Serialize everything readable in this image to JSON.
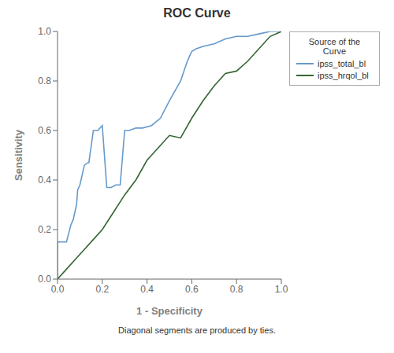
{
  "chart_data": {
    "type": "line",
    "title": "ROC Curve",
    "x_label": "1 - Specificity",
    "y_label": "Sensitivity",
    "footnote": "Diagonal segments are produced by ties.",
    "legend_title": "Source of the\n    Curve",
    "legend": "right",
    "grid": false,
    "xlim": [
      0.0,
      1.0
    ],
    "ylim": [
      0.0,
      1.0
    ],
    "xticks": [
      {
        "value": 0.0,
        "label": "0.0"
      },
      0.2,
      0.4,
      0.6,
      0.8,
      {
        "value": 1.0,
        "label": "1.0"
      }
    ],
    "yticks": [
      {
        "value": 0.0,
        "label": "0.0"
      },
      0.2,
      0.4,
      0.6,
      0.8,
      {
        "value": 1.0,
        "label": "1.0"
      }
    ],
    "series": [
      {
        "name": "ipss_total_bl",
        "color": "#6699CC",
        "x": [
          0.0,
          0.0,
          0.04,
          0.06,
          0.07,
          0.08,
          0.085,
          0.09,
          0.1,
          0.12,
          0.135,
          0.14,
          0.16,
          0.18,
          0.2,
          0.22,
          0.24,
          0.26,
          0.28,
          0.3,
          0.32,
          0.35,
          0.38,
          0.42,
          0.46,
          0.5,
          0.55,
          0.58,
          0.6,
          0.62,
          0.65,
          0.7,
          0.75,
          0.8,
          0.85,
          0.9,
          0.95,
          1.0
        ],
        "values": [
          0.0,
          0.15,
          0.15,
          0.22,
          0.24,
          0.28,
          0.3,
          0.36,
          0.38,
          0.46,
          0.47,
          0.47,
          0.6,
          0.6,
          0.62,
          0.37,
          0.37,
          0.38,
          0.38,
          0.6,
          0.6,
          0.61,
          0.61,
          0.62,
          0.65,
          0.72,
          0.8,
          0.88,
          0.92,
          0.93,
          0.94,
          0.95,
          0.97,
          0.98,
          0.98,
          0.99,
          1.0,
          1.0
        ]
      },
      {
        "name": "ipss_hrqol_bl",
        "color": "#336633",
        "x": [
          0.0,
          0.04,
          0.08,
          0.12,
          0.16,
          0.2,
          0.25,
          0.3,
          0.35,
          0.4,
          0.45,
          0.5,
          0.55,
          0.6,
          0.65,
          0.7,
          0.75,
          0.8,
          0.85,
          0.9,
          0.95,
          1.0
        ],
        "values": [
          0.0,
          0.04,
          0.08,
          0.12,
          0.16,
          0.2,
          0.27,
          0.34,
          0.4,
          0.48,
          0.53,
          0.58,
          0.57,
          0.65,
          0.72,
          0.78,
          0.83,
          0.84,
          0.88,
          0.93,
          0.98,
          1.0
        ]
      }
    ]
  }
}
